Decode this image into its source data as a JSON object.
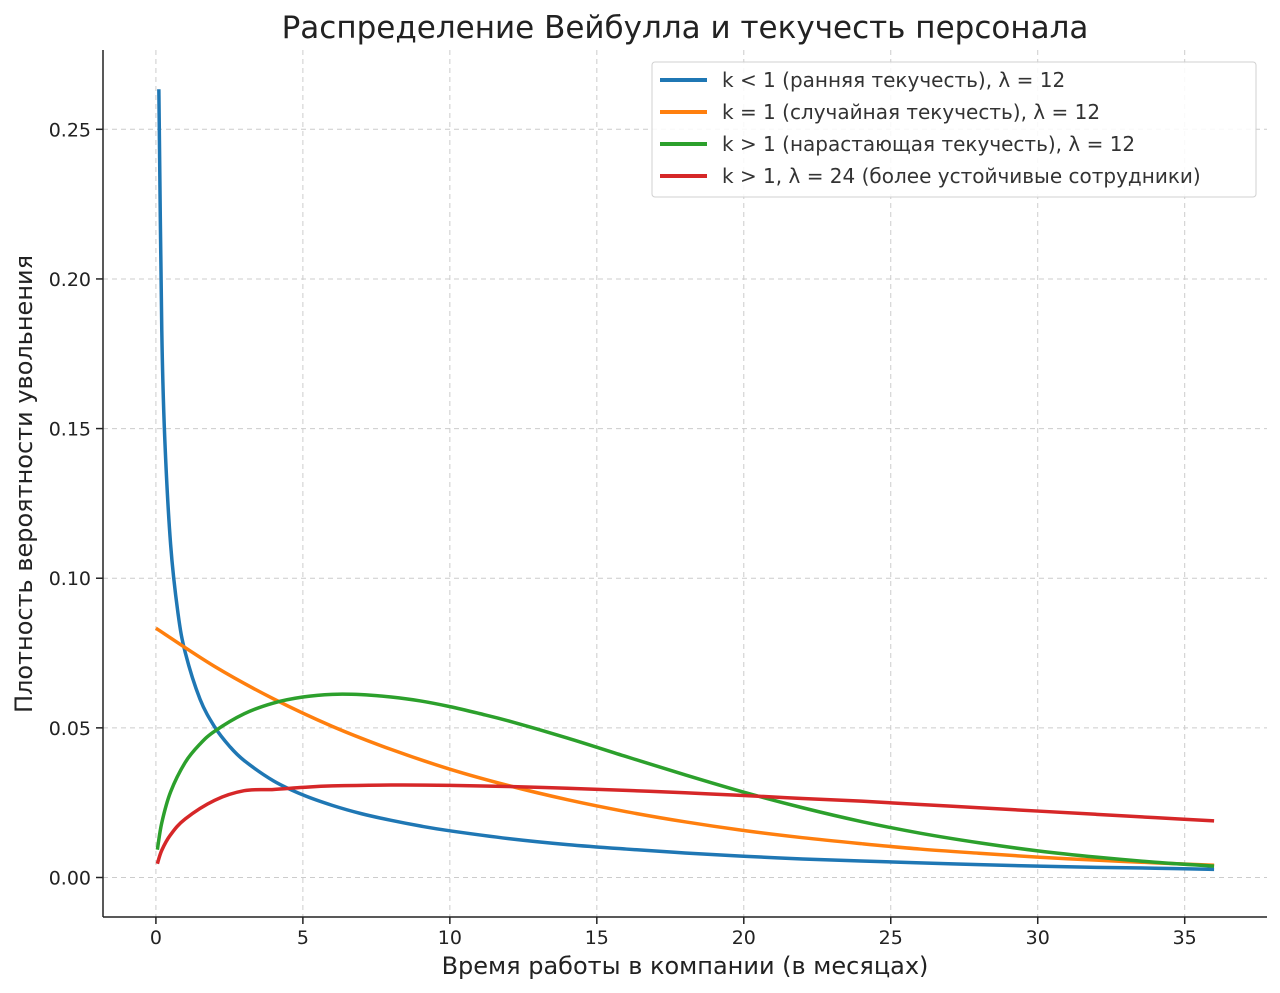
{
  "chart_data": {
    "type": "line",
    "title": "Распределение Вейбулла и текучесть персонала",
    "xlabel": "Время работы в компании (в месяцах)",
    "ylabel": "Плотность вероятности увольнения",
    "xlim": [
      -1.8,
      37.8
    ],
    "ylim": [
      -0.0132,
      0.2765
    ],
    "xticks": [
      0,
      5,
      10,
      15,
      20,
      25,
      30,
      35
    ],
    "xtick_labels": [
      "0",
      "5",
      "10",
      "15",
      "20",
      "25",
      "30",
      "35"
    ],
    "yticks": [
      0.0,
      0.05,
      0.1,
      0.15,
      0.2,
      0.25
    ],
    "ytick_labels": [
      "0.00",
      "0.05",
      "0.10",
      "0.15",
      "0.20",
      "0.25"
    ],
    "grid": true,
    "legend_position": "top-right",
    "series": [
      {
        "name": "k < 1 (ранняя текучесть), λ = 12",
        "color": "#1f77b4",
        "x": [
          0.1,
          0.2,
          0.3,
          0.5,
          0.75,
          1,
          1.5,
          2,
          2.5,
          3,
          4,
          5,
          6,
          7,
          8,
          9,
          10,
          12,
          14,
          16,
          18,
          20,
          22,
          24,
          26,
          28,
          30,
          32,
          34,
          36
        ],
        "y": [
          0.2634,
          0.1826,
          0.147,
          0.1113,
          0.0884,
          0.0751,
          0.0596,
          0.0503,
          0.0439,
          0.0391,
          0.0323,
          0.0276,
          0.0241,
          0.0213,
          0.0191,
          0.0172,
          0.0156,
          0.013,
          0.011,
          0.0095,
          0.0082,
          0.0071,
          0.0062,
          0.0055,
          0.0049,
          0.0043,
          0.0038,
          0.0034,
          0.0031,
          0.0027
        ]
      },
      {
        "name": "k = 1 (случайная текучесть), λ = 12",
        "color": "#ff7f0e",
        "x": [
          0,
          2,
          4,
          6,
          8,
          10,
          12,
          14,
          16,
          18,
          20,
          22,
          24,
          26,
          28,
          30,
          32,
          34,
          36
        ],
        "y": [
          0.0833,
          0.0705,
          0.0597,
          0.0505,
          0.0428,
          0.0362,
          0.0307,
          0.026,
          0.022,
          0.0186,
          0.0157,
          0.0133,
          0.0113,
          0.0095,
          0.0081,
          0.0068,
          0.0058,
          0.0049,
          0.0041
        ]
      },
      {
        "name": "k > 1 (нарастающая текучесть), λ = 12",
        "color": "#2ca02c",
        "x": [
          0.05,
          0.2,
          0.5,
          1,
          1.5,
          2,
          3,
          4,
          5,
          6,
          7,
          8,
          9,
          10,
          11,
          12,
          14,
          16,
          18,
          20,
          22,
          24,
          26,
          28,
          30,
          32,
          34,
          36
        ],
        "y": [
          0.0093,
          0.0183,
          0.0286,
          0.0385,
          0.0446,
          0.0489,
          0.0547,
          0.0583,
          0.0603,
          0.0612,
          0.0611,
          0.0603,
          0.059,
          0.0571,
          0.0548,
          0.0523,
          0.0466,
          0.0404,
          0.0343,
          0.0285,
          0.0233,
          0.0187,
          0.0148,
          0.0116,
          0.0089,
          0.0068,
          0.0051,
          0.0038
        ]
      },
      {
        "name": "k > 1, λ = 24 (более устойчивые сотрудники)",
        "color": "#d62728",
        "x": [
          0.05,
          0.2,
          0.5,
          1,
          2,
          3,
          4,
          5,
          6,
          8,
          10,
          12,
          14,
          16,
          18,
          20,
          22,
          24,
          26,
          28,
          30,
          32,
          34,
          36
        ],
        "y": [
          0.0046,
          0.0091,
          0.0143,
          0.0196,
          0.0258,
          0.029,
          0.0294,
          0.0301,
          0.0306,
          0.0309,
          0.0308,
          0.0304,
          0.0298,
          0.0291,
          0.0283,
          0.0274,
          0.0264,
          0.0255,
          0.0244,
          0.0233,
          0.0222,
          0.0211,
          0.02,
          0.0189
        ]
      }
    ]
  }
}
